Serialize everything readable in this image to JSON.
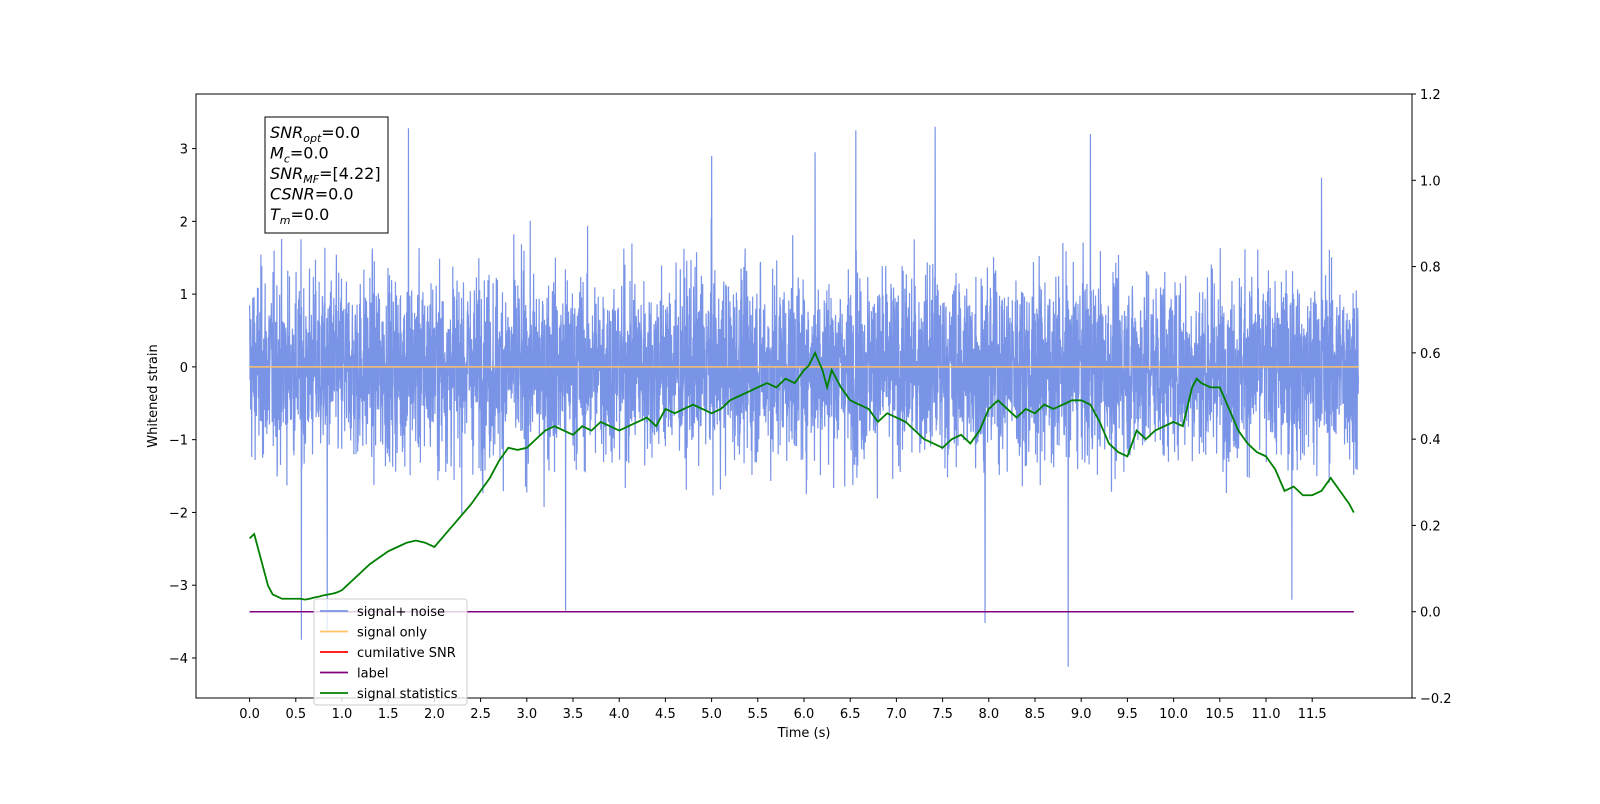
{
  "chart_data": {
    "type": "line",
    "title": "",
    "xlabel": "Time (s)",
    "ylabel": "Whitened strain",
    "x_range": [
      -0.58,
      12.58
    ],
    "xlim": [
      -0.58,
      12.58
    ],
    "ylim": [
      -4.55,
      3.75
    ],
    "y2lim": [
      -0.2,
      1.2
    ],
    "x_ticks": [
      0.0,
      0.5,
      1.0,
      1.5,
      2.0,
      2.5,
      3.0,
      3.5,
      4.0,
      4.5,
      5.0,
      5.5,
      6.0,
      6.5,
      7.0,
      7.5,
      8.0,
      8.5,
      9.0,
      9.5,
      10.0,
      10.5,
      11.0,
      11.5
    ],
    "x_tick_labels": [
      "0.0",
      "0.5",
      "1.0",
      "1.5",
      "2.0",
      "2.5",
      "3.0",
      "3.5",
      "4.0",
      "4.5",
      "5.0",
      "5.5",
      "6.0",
      "6.5",
      "7.0",
      "7.5",
      "8.0",
      "8.5",
      "9.0",
      "9.5",
      "10.0",
      "10.5",
      "11.0",
      "11.5"
    ],
    "y_ticks": [
      -4,
      -3,
      -2,
      -1,
      0,
      1,
      2,
      3
    ],
    "y_tick_labels": [
      "−4",
      "−3",
      "−2",
      "−1",
      "0",
      "1",
      "2",
      "3"
    ],
    "y2_ticks": [
      -0.2,
      0.0,
      0.2,
      0.4,
      0.6,
      0.8,
      1.0,
      1.2
    ],
    "y2_tick_labels": [
      "−0.2",
      "0.0",
      "0.2",
      "0.4",
      "0.6",
      "0.8",
      "1.0",
      "1.2"
    ],
    "grid": false,
    "legend_position": "bottom-left",
    "info_box": {
      "position": "top-left",
      "lines": [
        {
          "base": "SNR",
          "sub": "opt",
          "value": "=0.0"
        },
        {
          "base": "M",
          "sub": "c",
          "value": "=0.0"
        },
        {
          "base": "SNR",
          "sub": "MF",
          "value": "=[4.22]"
        },
        {
          "base": "CSNR",
          "sub": "",
          "value": "=0.0"
        },
        {
          "base": "T",
          "sub": "m",
          "value": "=0.0"
        }
      ]
    },
    "series": [
      {
        "name": "signal+ noise",
        "color": "#7994e6",
        "axis": "left",
        "kind": "noise",
        "x_range": [
          0.0,
          12.0
        ],
        "typical_range": [
          -1.6,
          1.6
        ],
        "extremes": [
          {
            "x": 0.56,
            "y": -3.75
          },
          {
            "x": 0.84,
            "y": -3.65
          },
          {
            "x": 1.72,
            "y": 3.28
          },
          {
            "x": 3.42,
            "y": -3.35
          },
          {
            "x": 5.0,
            "y": 2.9
          },
          {
            "x": 6.12,
            "y": 2.95
          },
          {
            "x": 6.56,
            "y": 3.25
          },
          {
            "x": 7.42,
            "y": 3.3
          },
          {
            "x": 7.96,
            "y": -3.52
          },
          {
            "x": 8.86,
            "y": -4.12
          },
          {
            "x": 9.1,
            "y": 3.2
          },
          {
            "x": 11.28,
            "y": -3.2
          },
          {
            "x": 11.6,
            "y": 2.6
          }
        ]
      },
      {
        "name": "signal only",
        "color": "#ffc266",
        "axis": "left",
        "x": [
          0.0,
          12.0
        ],
        "y": [
          0.0,
          0.0
        ]
      },
      {
        "name": "cumilative SNR",
        "color": "#ff0000",
        "axis": "right",
        "x": [],
        "y": []
      },
      {
        "name": "label",
        "color": "#800080",
        "axis": "right",
        "x": [
          0.0,
          11.95
        ],
        "y": [
          0.0,
          0.0
        ]
      },
      {
        "name": "signal statistics",
        "color": "#008000",
        "axis": "right",
        "x": [
          0.0,
          0.05,
          0.1,
          0.15,
          0.2,
          0.25,
          0.3,
          0.35,
          0.4,
          0.45,
          0.5,
          0.55,
          0.6,
          0.65,
          0.7,
          0.75,
          0.8,
          0.85,
          0.9,
          0.95,
          1.0,
          1.05,
          1.1,
          1.15,
          1.2,
          1.3,
          1.4,
          1.5,
          1.6,
          1.7,
          1.8,
          1.9,
          2.0,
          2.1,
          2.2,
          2.3,
          2.4,
          2.5,
          2.6,
          2.7,
          2.8,
          2.9,
          3.0,
          3.1,
          3.2,
          3.3,
          3.4,
          3.5,
          3.6,
          3.7,
          3.8,
          3.9,
          4.0,
          4.1,
          4.2,
          4.3,
          4.4,
          4.5,
          4.6,
          4.7,
          4.8,
          4.9,
          5.0,
          5.1,
          5.2,
          5.3,
          5.4,
          5.5,
          5.6,
          5.7,
          5.8,
          5.9,
          6.0,
          6.05,
          6.12,
          6.2,
          6.25,
          6.3,
          6.4,
          6.5,
          6.6,
          6.7,
          6.8,
          6.9,
          7.0,
          7.1,
          7.2,
          7.3,
          7.4,
          7.5,
          7.6,
          7.7,
          7.8,
          7.9,
          8.0,
          8.1,
          8.2,
          8.3,
          8.4,
          8.5,
          8.6,
          8.7,
          8.8,
          8.9,
          9.0,
          9.1,
          9.2,
          9.3,
          9.4,
          9.5,
          9.6,
          9.7,
          9.8,
          9.9,
          10.0,
          10.1,
          10.2,
          10.25,
          10.3,
          10.4,
          10.5,
          10.6,
          10.7,
          10.8,
          10.9,
          11.0,
          11.1,
          11.2,
          11.3,
          11.4,
          11.5,
          11.6,
          11.7,
          11.8,
          11.9,
          11.95
        ],
        "y": [
          0.17,
          0.18,
          0.14,
          0.1,
          0.06,
          0.04,
          0.035,
          0.03,
          0.03,
          0.03,
          0.03,
          0.03,
          0.028,
          0.03,
          0.033,
          0.035,
          0.038,
          0.04,
          0.042,
          0.045,
          0.05,
          0.06,
          0.07,
          0.08,
          0.09,
          0.11,
          0.125,
          0.14,
          0.15,
          0.16,
          0.165,
          0.16,
          0.15,
          0.175,
          0.2,
          0.225,
          0.25,
          0.28,
          0.31,
          0.35,
          0.38,
          0.375,
          0.38,
          0.4,
          0.42,
          0.43,
          0.42,
          0.41,
          0.43,
          0.42,
          0.44,
          0.43,
          0.42,
          0.43,
          0.44,
          0.45,
          0.43,
          0.47,
          0.46,
          0.47,
          0.48,
          0.47,
          0.46,
          0.47,
          0.49,
          0.5,
          0.51,
          0.52,
          0.53,
          0.52,
          0.54,
          0.53,
          0.56,
          0.57,
          0.6,
          0.56,
          0.52,
          0.56,
          0.52,
          0.49,
          0.48,
          0.47,
          0.44,
          0.46,
          0.45,
          0.44,
          0.42,
          0.4,
          0.39,
          0.38,
          0.4,
          0.41,
          0.39,
          0.42,
          0.47,
          0.49,
          0.47,
          0.45,
          0.47,
          0.46,
          0.48,
          0.47,
          0.48,
          0.49,
          0.49,
          0.48,
          0.44,
          0.39,
          0.37,
          0.36,
          0.42,
          0.4,
          0.42,
          0.43,
          0.44,
          0.43,
          0.52,
          0.54,
          0.53,
          0.52,
          0.52,
          0.47,
          0.42,
          0.39,
          0.37,
          0.36,
          0.33,
          0.28,
          0.29,
          0.27,
          0.27,
          0.28,
          0.31,
          0.28,
          0.25,
          0.23
        ]
      }
    ]
  }
}
